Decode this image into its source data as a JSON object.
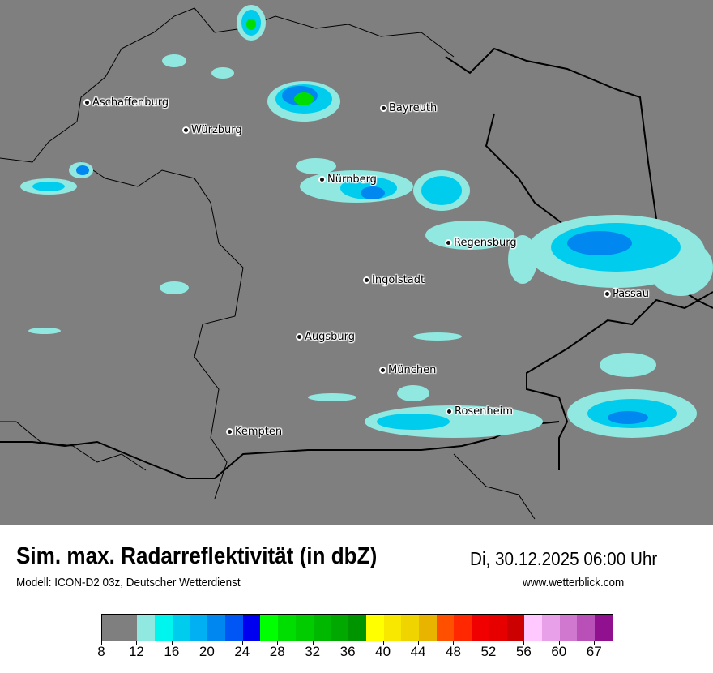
{
  "map": {
    "background_color": "#7f7f7f",
    "cities": [
      {
        "name": "Aschaffenburg"
      },
      {
        "name": "Würzburg"
      },
      {
        "name": "Bayreuth"
      },
      {
        "name": "Nürnberg"
      },
      {
        "name": "Regensburg"
      },
      {
        "name": "Ingolstadt"
      },
      {
        "name": "Passau"
      },
      {
        "name": "Augsburg"
      },
      {
        "name": "München"
      },
      {
        "name": "Rosenheim"
      },
      {
        "name": "Kempten"
      }
    ]
  },
  "header": {
    "title": "Sim. max. Radarreflektivität (in dbZ)",
    "datetime": "Di, 30.12.2025 06:00 Uhr",
    "model": "Modell: ICON-D2 03z, Deutscher Wetterdienst",
    "website": "www.wetterblick.com"
  },
  "legend": {
    "colors": [
      "#7f7f7f",
      "#90e8e0",
      "#00f5ee",
      "#00ccee",
      "#00b0f2",
      "#0088f0",
      "#0055f5",
      "#0000f0",
      "#00ff00",
      "#00dd00",
      "#00cc00",
      "#00b800",
      "#00a800",
      "#009500",
      "#ffff00",
      "#f8e800",
      "#f0d400",
      "#e8b400",
      "#ff5000",
      "#ff2800",
      "#f00000",
      "#e60000",
      "#cc0000",
      "#ffc8ff",
      "#e8a0e8",
      "#d078d0",
      "#b850b8",
      "#901090"
    ],
    "ticks": [
      "8",
      "12",
      "16",
      "20",
      "24",
      "28",
      "32",
      "36",
      "40",
      "44",
      "48",
      "52",
      "56",
      "60",
      "67"
    ]
  }
}
